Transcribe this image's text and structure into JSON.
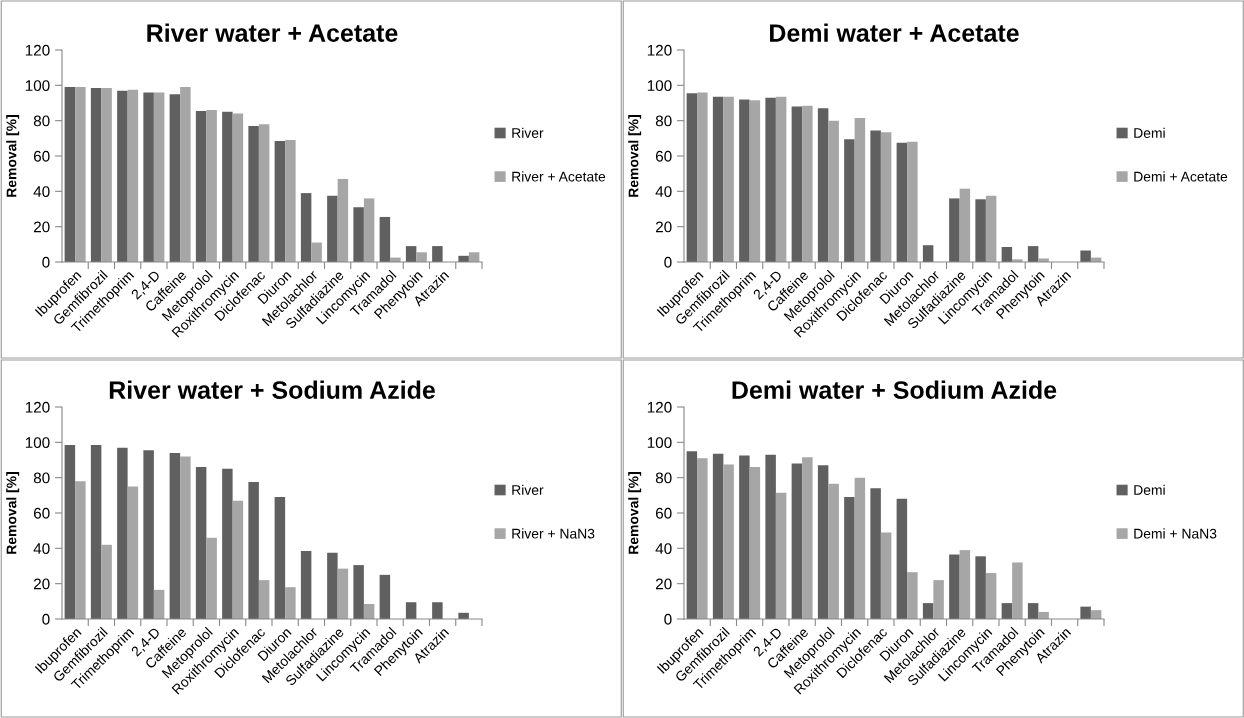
{
  "chart_data": [
    {
      "type": "bar",
      "title": "River water + Acetate",
      "ylabel": "Removal [%]",
      "categories": [
        "Ibuprofen",
        "Gemfibrozil",
        "Trimethoprim",
        "2,4-D",
        "Caffeine",
        "Metoprolol",
        "Roxithromycin",
        "Diclofenac",
        "Diuron",
        "Metolachlor",
        "Sulfadiazine",
        "Lincomycin",
        "Tramadol",
        "Phenytoin",
        "Atrazin",
        null
      ],
      "ylim": [
        0,
        120
      ],
      "yticks": [
        0,
        20,
        40,
        60,
        80,
        100,
        120
      ],
      "grid": false,
      "legend": "right",
      "series": [
        {
          "name": "River",
          "color": "#606060",
          "values": [
            99,
            98.5,
            97,
            96,
            95,
            85.5,
            85,
            77,
            68.5,
            39,
            37.5,
            31,
            25.5,
            9,
            9,
            3.5
          ]
        },
        {
          "name": "River + Acetate",
          "color": "#a6a6a6",
          "values": [
            99,
            98.5,
            97.5,
            96,
            99,
            86,
            84,
            78,
            69,
            11,
            47,
            36,
            2.5,
            5.5,
            0,
            5.5
          ]
        }
      ]
    },
    {
      "type": "bar",
      "title": "Demi water + Acetate",
      "ylabel": "Removal [%]",
      "categories": [
        "Ibuprofen",
        "Gemfibrozil",
        "Trimethoprim",
        "2,4-D",
        "Caffeine",
        "Metoprolol",
        "Roxithromycin",
        "Diclofenac",
        "Diuron",
        "Metolachlor",
        "Sulfadiazine",
        "Lincomycin",
        "Tramadol",
        "Phenytoin",
        "Atrazin",
        null
      ],
      "ylim": [
        0,
        120
      ],
      "yticks": [
        0,
        20,
        40,
        60,
        80,
        100,
        120
      ],
      "grid": false,
      "legend": "right",
      "series": [
        {
          "name": "Demi",
          "color": "#606060",
          "values": [
            95.5,
            93.5,
            92,
            93,
            88,
            87,
            69.5,
            74.5,
            67.5,
            9.5,
            36,
            35.5,
            8.5,
            9,
            0,
            6.5
          ]
        },
        {
          "name": "Demi + Acetate",
          "color": "#a6a6a6",
          "values": [
            96,
            93.5,
            91.5,
            93.5,
            88.5,
            80,
            81.5,
            73.5,
            68,
            0,
            41.5,
            37.5,
            1.5,
            2,
            0,
            2.5
          ]
        }
      ]
    },
    {
      "type": "bar",
      "title": "River water + Sodium Azide",
      "ylabel": "Removal [%]",
      "categories": [
        "Ibuprofen",
        "Gemfibrozil",
        "Trimethoprim",
        "2,4-D",
        "Caffeine",
        "Metoprolol",
        "Roxithromycin",
        "Diclofenac",
        "Diuron",
        "Metolachlor",
        "Sulfadiazine",
        "Lincomycin",
        "Tramadol",
        "Phenytoin",
        "Atrazin",
        null
      ],
      "ylim": [
        0,
        120
      ],
      "yticks": [
        0,
        20,
        40,
        60,
        80,
        100,
        120
      ],
      "grid": false,
      "legend": "right",
      "series": [
        {
          "name": "River",
          "color": "#606060",
          "values": [
            98.5,
            98.5,
            97,
            95.5,
            94,
            86,
            85,
            77.5,
            69,
            38.5,
            37.5,
            30.5,
            25,
            9.5,
            9.5,
            3.5
          ]
        },
        {
          "name": "River + NaN3",
          "color": "#a6a6a6",
          "values": [
            78,
            42,
            75,
            16.5,
            92,
            46,
            67,
            22,
            18,
            0,
            28.5,
            8.5,
            0,
            0,
            0,
            0
          ]
        }
      ]
    },
    {
      "type": "bar",
      "title": "Demi water + Sodium Azide",
      "ylabel": "Removal [%]",
      "categories": [
        "Ibuprofen",
        "Gemfibrozil",
        "Trimethoprim",
        "2,4-D",
        "Caffeine",
        "Metoprolol",
        "Roxithromycin",
        "Diclofenac",
        "Diuron",
        "Metolachlor",
        "Sulfadiazine",
        "Lincomycin",
        "Tramadol",
        "Phenytoin",
        "Atrazin",
        null
      ],
      "ylim": [
        0,
        120
      ],
      "yticks": [
        0,
        20,
        40,
        60,
        80,
        100,
        120
      ],
      "grid": false,
      "legend": "right",
      "series": [
        {
          "name": "Demi",
          "color": "#606060",
          "values": [
            95,
            93.5,
            92.5,
            93,
            88,
            87,
            69,
            74,
            68,
            9,
            36.5,
            35.5,
            9,
            9,
            0,
            7
          ]
        },
        {
          "name": "Demi + NaN3",
          "color": "#a6a6a6",
          "values": [
            91,
            87.5,
            86,
            71.5,
            91.5,
            76.5,
            80,
            49,
            26.5,
            22,
            39,
            26,
            32,
            4,
            0,
            5
          ]
        }
      ]
    }
  ]
}
